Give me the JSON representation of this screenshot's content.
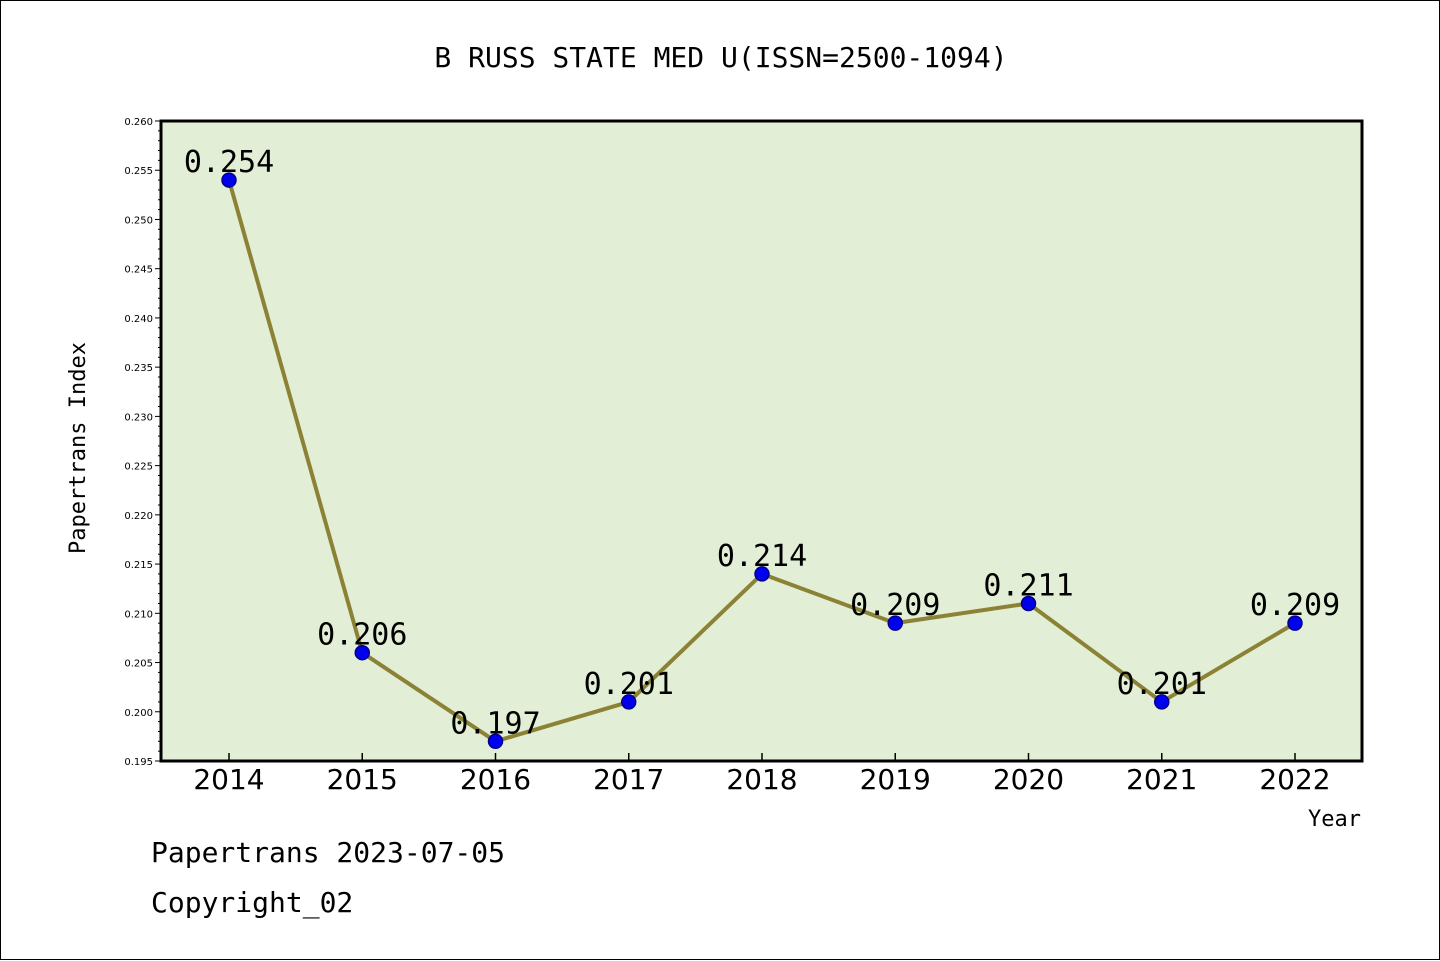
{
  "chart_data": {
    "type": "line",
    "title": "B RUSS STATE MED U(ISSN=2500-1094)",
    "xlabel": "Year",
    "ylabel": "Papertrans Index",
    "categories": [
      "2014",
      "2015",
      "2016",
      "2017",
      "2018",
      "2019",
      "2020",
      "2021",
      "2022"
    ],
    "series": [
      {
        "values": [
          0.254,
          0.206,
          0.197,
          0.201,
          0.214,
          0.209,
          0.211,
          0.201,
          0.209
        ],
        "data_labels": [
          "0.254",
          "0.206",
          "0.197",
          "0.201",
          "0.214",
          "0.209",
          "0.211",
          "0.201",
          "0.209"
        ]
      }
    ],
    "ylim": [
      0.195,
      0.26
    ],
    "yticks": [
      "0.195",
      "0.200",
      "0.205",
      "0.210",
      "0.215",
      "0.220",
      "0.225",
      "0.230",
      "0.235",
      "0.240",
      "0.245",
      "0.250",
      "0.255",
      "0.260"
    ],
    "grid": false,
    "colors": {
      "plot_background": "#e2efd6",
      "line": "#8b8236",
      "marker": "#0000ee",
      "marker_edge": "#00008b"
    }
  },
  "footer": {
    "line1": "Papertrans 2023-07-05",
    "line2": "Copyright_02"
  }
}
